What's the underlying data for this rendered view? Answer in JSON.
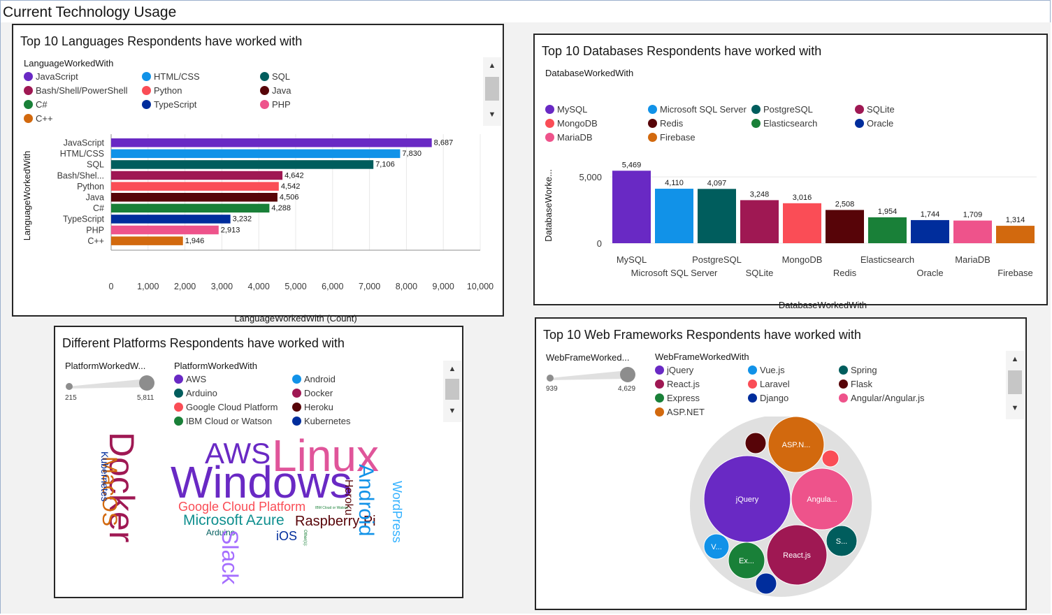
{
  "page": {
    "title": "Current Technology Usage"
  },
  "languages": {
    "title": "Top 10 Languages Respondents have worked with",
    "legend_title": "LanguageWorkedWith",
    "legend": [
      {
        "label": "JavaScript",
        "color": "#6929c4"
      },
      {
        "label": "HTML/CSS",
        "color": "#1192e8"
      },
      {
        "label": "SQL",
        "color": "#005d5d"
      },
      {
        "label": "Bash/Shell/PowerShell",
        "color": "#9f1853"
      },
      {
        "label": "Python",
        "color": "#fa4d56"
      },
      {
        "label": "Java",
        "color": "#570408"
      },
      {
        "label": "C#",
        "color": "#198038"
      },
      {
        "label": "TypeScript",
        "color": "#002d9c"
      },
      {
        "label": "PHP",
        "color": "#ee538b"
      },
      {
        "label": "C++",
        "color": "#d2690e"
      }
    ]
  },
  "databases": {
    "title": "Top 10 Databases Respondents have worked with",
    "legend_title": "DatabaseWorkedWith",
    "legend": [
      {
        "label": "MySQL",
        "color": "#6929c4"
      },
      {
        "label": "Microsoft SQL Server",
        "color": "#1192e8"
      },
      {
        "label": "PostgreSQL",
        "color": "#005d5d"
      },
      {
        "label": "SQLite",
        "color": "#9f1853"
      },
      {
        "label": "MongoDB",
        "color": "#fa4d56"
      },
      {
        "label": "Redis",
        "color": "#570408"
      },
      {
        "label": "Elasticsearch",
        "color": "#198038"
      },
      {
        "label": "Oracle",
        "color": "#002d9c"
      },
      {
        "label": "MariaDB",
        "color": "#ee538b"
      },
      {
        "label": "Firebase",
        "color": "#d2690e"
      }
    ]
  },
  "platforms": {
    "title": "Different Platforms Respondents have worked with",
    "slider_title": "PlatformWorkedW...",
    "slider_min": "215",
    "slider_max": "5,811",
    "legend_title": "PlatformWorkedWith",
    "legend": [
      {
        "label": "AWS",
        "color": "#6929c4"
      },
      {
        "label": "Android",
        "color": "#1192e8"
      },
      {
        "label": "Arduino",
        "color": "#005d5d"
      },
      {
        "label": "Docker",
        "color": "#9f1853"
      },
      {
        "label": "Google Cloud Platform",
        "color": "#fa4d56"
      },
      {
        "label": "Heroku",
        "color": "#570408"
      },
      {
        "label": "IBM Cloud or Watson",
        "color": "#198038"
      },
      {
        "label": "Kubernetes",
        "color": "#002d9c"
      }
    ],
    "words": [
      {
        "text": "Linux",
        "color": "#e0559a"
      },
      {
        "text": "AWS",
        "color": "#6929c4"
      },
      {
        "text": "Windows",
        "color": "#6929c4"
      },
      {
        "text": "Docker",
        "color": "#9f1853"
      },
      {
        "text": "MacOS",
        "color": "#d2690e"
      },
      {
        "text": "Kubernetes",
        "color": "#002d9c"
      },
      {
        "text": "Google Cloud Platform",
        "color": "#fa4d56"
      },
      {
        "text": "Microsoft Azure",
        "color": "#0f8f8f"
      },
      {
        "text": "Raspberry Pi",
        "color": "#570408"
      },
      {
        "text": "Heroku",
        "color": "#570408"
      },
      {
        "text": "Android",
        "color": "#1192e8"
      },
      {
        "text": "WordPress",
        "color": "#33b1ff"
      },
      {
        "text": "Arduino",
        "color": "#005d5d"
      },
      {
        "text": "iOS",
        "color": "#002d9c"
      },
      {
        "text": "Slack",
        "color": "#a56eff"
      },
      {
        "text": "IBM Cloud or Watson",
        "color": "#198038"
      },
      {
        "text": "Other(s):",
        "color": "#198038"
      }
    ]
  },
  "web": {
    "title": "Top 10 Web Frameworks Respondents have worked with",
    "slider_title": "WebFrameWorked...",
    "slider_min": "939",
    "slider_max": "4,629",
    "legend_title": "WebFrameWorkedWith",
    "legend": [
      {
        "label": "jQuery",
        "color": "#6929c4"
      },
      {
        "label": "Vue.js",
        "color": "#1192e8"
      },
      {
        "label": "Spring",
        "color": "#005d5d"
      },
      {
        "label": "React.js",
        "color": "#9f1853"
      },
      {
        "label": "Laravel",
        "color": "#fa4d56"
      },
      {
        "label": "Flask",
        "color": "#570408"
      },
      {
        "label": "Express",
        "color": "#198038"
      },
      {
        "label": "Django",
        "color": "#002d9c"
      },
      {
        "label": "Angular/Angular.js",
        "color": "#ee538b"
      },
      {
        "label": "ASP.NET",
        "color": "#d2690e"
      }
    ],
    "bubbles": [
      {
        "name": "jQuery",
        "label": "jQuery",
        "color": "#6929c4"
      },
      {
        "name": "Angular/Angular.js",
        "label": "Angula...",
        "color": "#ee538b"
      },
      {
        "name": "React.js",
        "label": "React.js",
        "color": "#9f1853"
      },
      {
        "name": "ASP.NET",
        "label": "ASP.N...",
        "color": "#d2690e"
      },
      {
        "name": "Express",
        "label": "Ex...",
        "color": "#198038"
      },
      {
        "name": "Vue.js",
        "label": "V...",
        "color": "#1192e8"
      },
      {
        "name": "Spring",
        "label": "S...",
        "color": "#005d5d"
      },
      {
        "name": "Flask",
        "label": "",
        "color": "#570408"
      },
      {
        "name": "Laravel",
        "label": "",
        "color": "#fa4d56"
      },
      {
        "name": "Django",
        "label": "",
        "color": "#002d9c"
      }
    ]
  },
  "chart_data": [
    {
      "type": "bar",
      "orientation": "horizontal",
      "title": "Top 10 Languages Respondents have worked with",
      "xlabel": "LanguageWorkedWith (Count)",
      "ylabel": "LanguageWorkedWith",
      "categories": [
        "JavaScript",
        "HTML/CSS",
        "SQL",
        "Bash/Shel...",
        "Python",
        "Java",
        "C#",
        "TypeScript",
        "PHP",
        "C++"
      ],
      "values": [
        8687,
        7830,
        7106,
        4642,
        4542,
        4506,
        4288,
        3232,
        2913,
        1946
      ],
      "value_labels": [
        "8,687",
        "7,830",
        "7,106",
        "4,642",
        "4,542",
        "4,506",
        "4,288",
        "3,232",
        "2,913",
        "1,946"
      ],
      "colors": [
        "#6929c4",
        "#1192e8",
        "#005d5d",
        "#9f1853",
        "#fa4d56",
        "#570408",
        "#198038",
        "#002d9c",
        "#ee538b",
        "#d2690e"
      ],
      "xlim": [
        0,
        10000
      ],
      "xticks": [
        "0",
        "1,000",
        "2,000",
        "3,000",
        "4,000",
        "5,000",
        "6,000",
        "7,000",
        "8,000",
        "9,000",
        "10,000"
      ],
      "grid": true,
      "legend": "top-left"
    },
    {
      "type": "bar",
      "title": "Top 10 Databases Respondents have worked with",
      "xlabel": "DatabaseWorkedWith",
      "ylabel": "DatabaseWorke...",
      "categories": [
        "MySQL",
        "Microsoft SQL Server",
        "PostgreSQL",
        "SQLite",
        "MongoDB",
        "Redis",
        "Elasticsearch",
        "Oracle",
        "MariaDB",
        "Firebase"
      ],
      "values": [
        5469,
        4110,
        4097,
        3248,
        3016,
        2508,
        1954,
        1744,
        1709,
        1314
      ],
      "value_labels": [
        "5,469",
        "4,110",
        "4,097",
        "3,248",
        "3,016",
        "2,508",
        "1,954",
        "1,744",
        "1,709",
        "1,314"
      ],
      "colors": [
        "#6929c4",
        "#1192e8",
        "#005d5d",
        "#9f1853",
        "#fa4d56",
        "#570408",
        "#198038",
        "#002d9c",
        "#ee538b",
        "#d2690e"
      ],
      "ylim": [
        0,
        5800
      ],
      "yticks": [
        "0",
        "5,000"
      ],
      "grid": true,
      "legend": "top-left"
    },
    {
      "type": "wordcloud",
      "title": "Different Platforms Respondents have worked with",
      "words": [
        "Linux",
        "Windows",
        "AWS",
        "Docker",
        "MacOS",
        "Kubernetes",
        "Google Cloud Platform",
        "Microsoft Azure",
        "Raspberry Pi",
        "Heroku",
        "Android",
        "WordPress",
        "Arduino",
        "iOS",
        "Slack",
        "IBM Cloud or Watson",
        "Other(s):"
      ],
      "count_range": [
        215,
        5811
      ]
    },
    {
      "type": "bubble",
      "title": "Top 10 Web Frameworks Respondents have worked with",
      "categories": [
        "jQuery",
        "Angular/Angular.js",
        "React.js",
        "ASP.NET",
        "Express",
        "Vue.js",
        "Spring",
        "Flask",
        "Laravel",
        "Django"
      ],
      "count_range": [
        939,
        4629
      ]
    }
  ]
}
